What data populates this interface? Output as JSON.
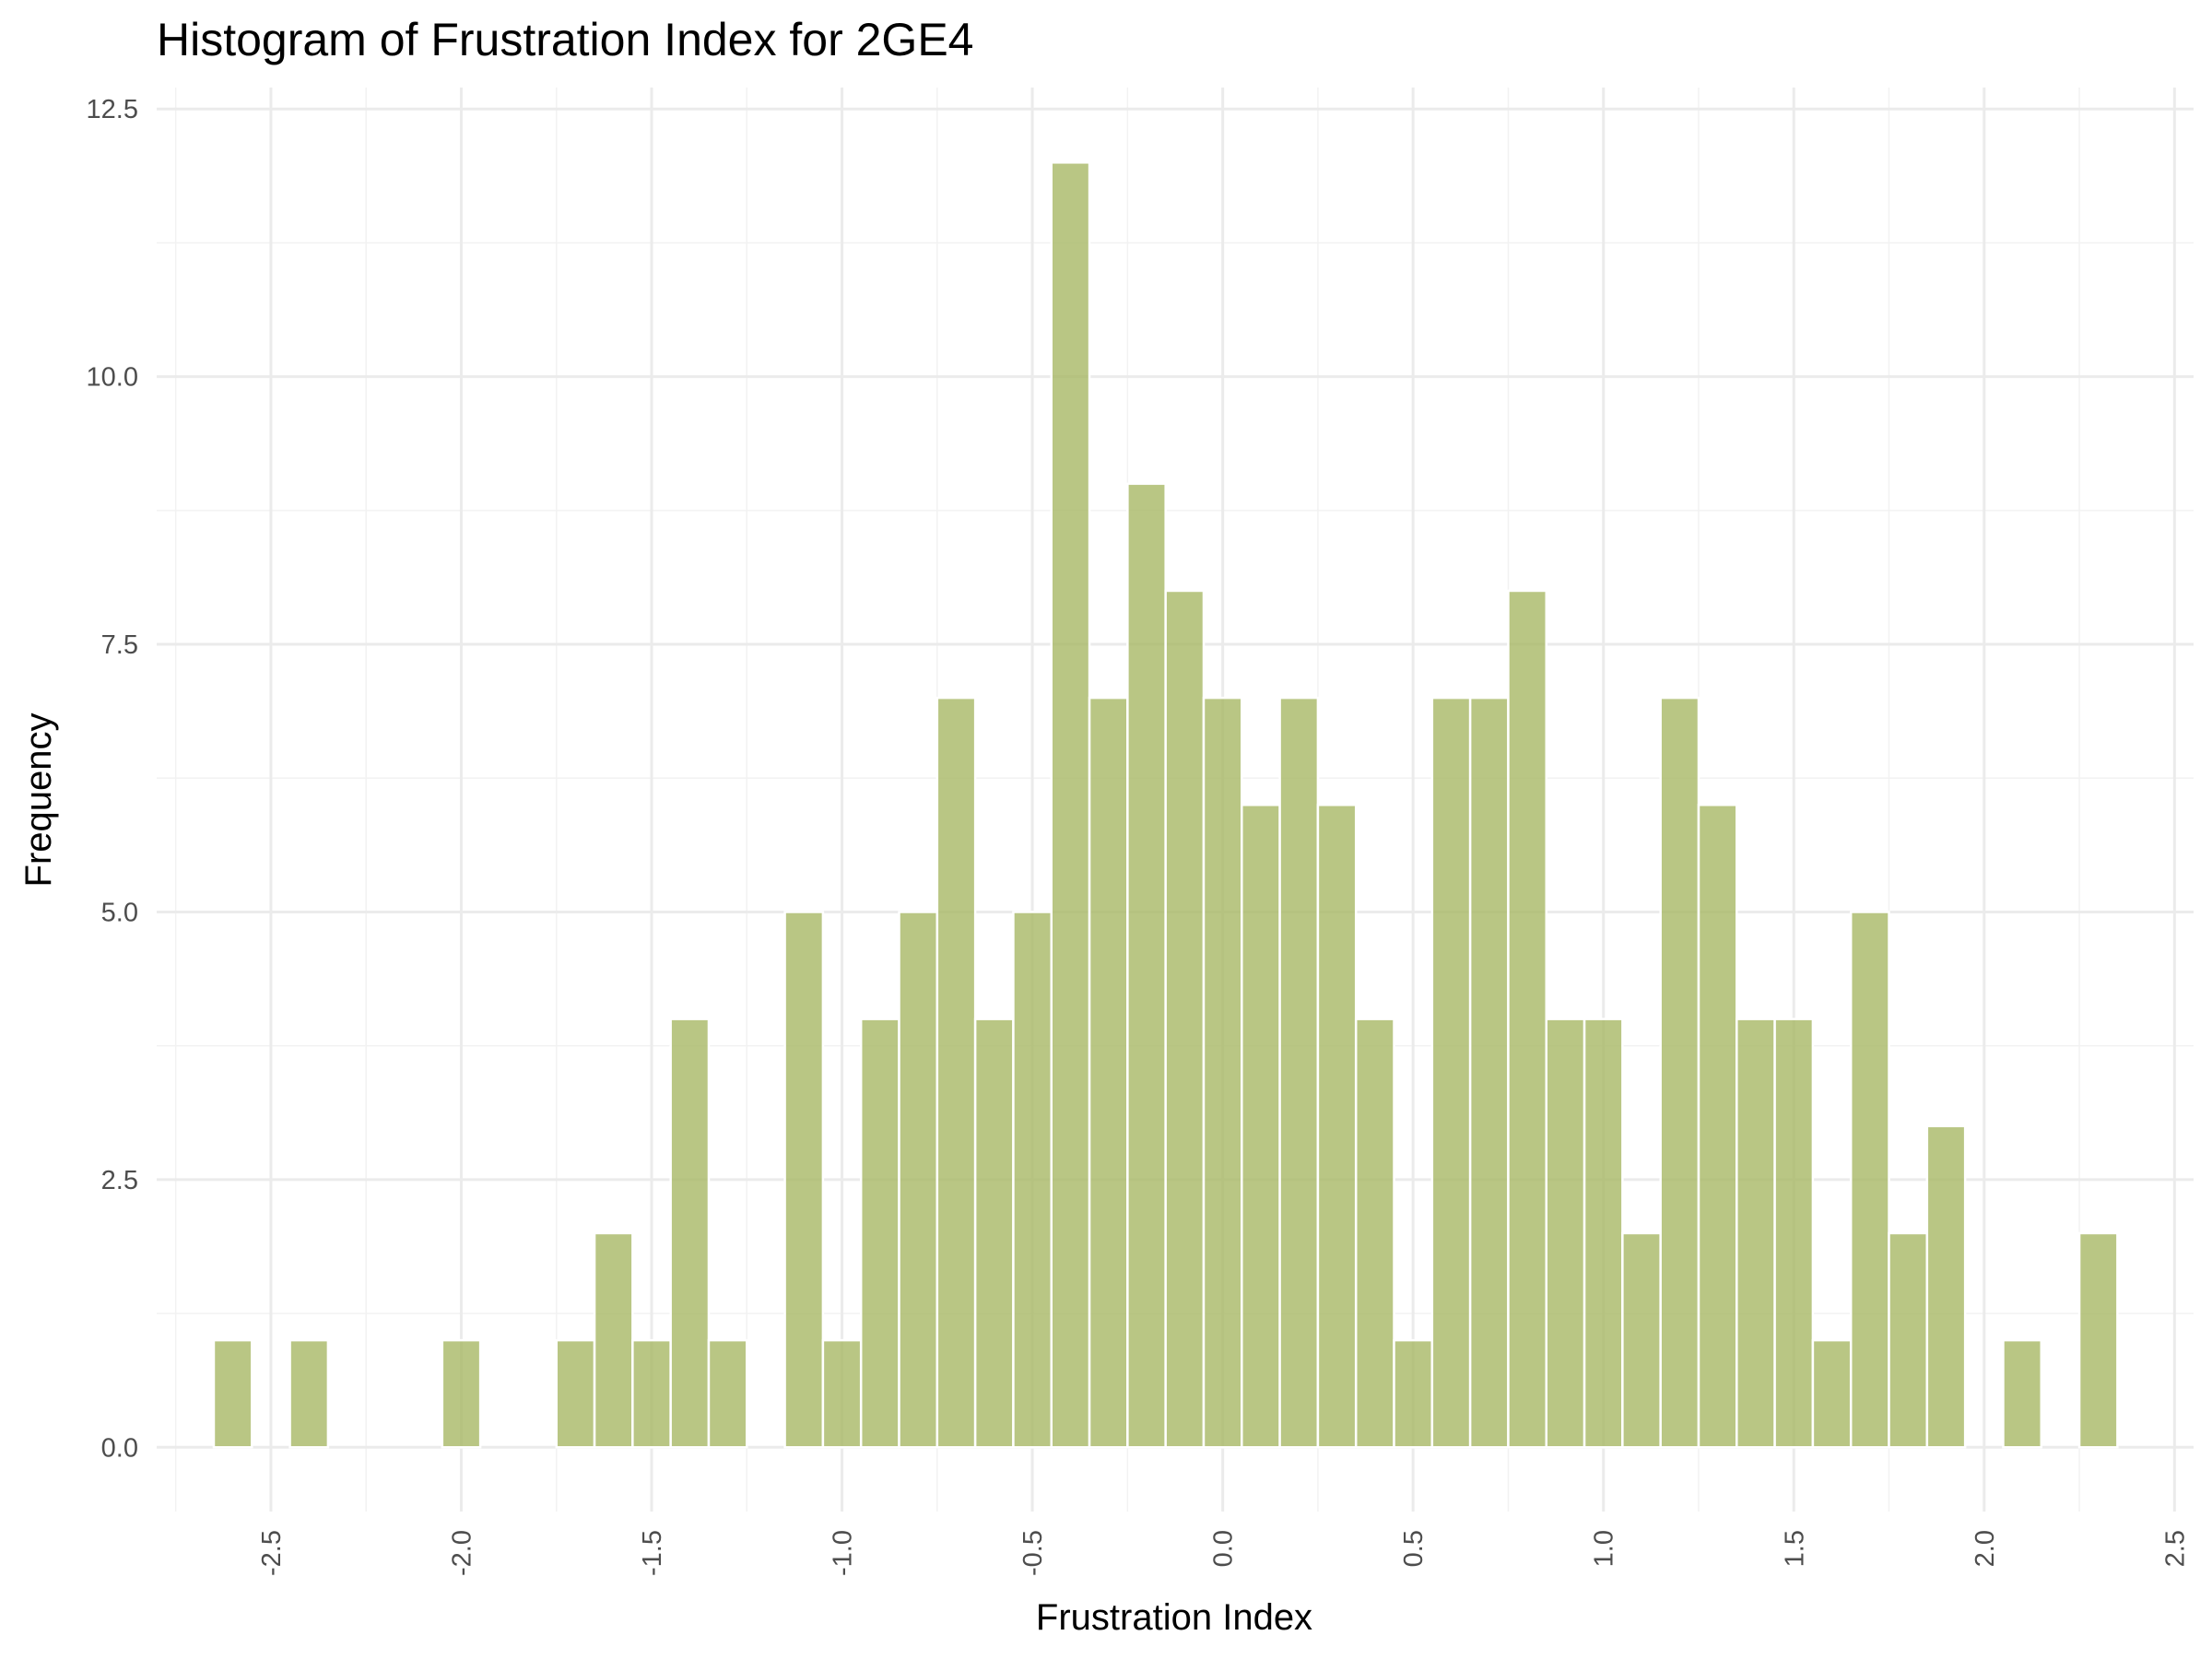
{
  "chart_data": {
    "type": "bar",
    "title": "Histogram of Frustration Index for 2GE4",
    "xlabel": "Frustration Index",
    "ylabel": "Frequency",
    "xlim": [
      -2.8,
      2.55
    ],
    "ylim": [
      -0.6,
      12.7
    ],
    "x_ticks": [
      -2.5,
      -2.0,
      -1.5,
      -1.0,
      -0.5,
      0.0,
      0.5,
      1.0,
      1.5,
      2.0,
      2.5
    ],
    "x_tick_labels": [
      "-2.5",
      "-2.0",
      "-1.5",
      "-1.0",
      "-0.5",
      "0.0",
      "0.5",
      "1.0",
      "1.5",
      "2.0",
      "2.5"
    ],
    "y_ticks": [
      0.0,
      2.5,
      5.0,
      7.5,
      10.0,
      12.5
    ],
    "y_tick_labels": [
      "0.0",
      "2.5",
      "5.0",
      "7.5",
      "10.0",
      "12.5"
    ],
    "bin_width": 0.1,
    "bin_centers": [
      -2.6,
      -2.5,
      -2.4,
      -2.3,
      -2.2,
      -2.1,
      -2.0,
      -1.9,
      -1.8,
      -1.7,
      -1.6,
      -1.5,
      -1.4,
      -1.3,
      -1.2,
      -1.1,
      -1.0,
      -0.9,
      -0.8,
      -0.7,
      -0.6,
      -0.5,
      -0.4,
      -0.3,
      -0.2,
      -0.1,
      0.0,
      0.1,
      0.2,
      0.3,
      0.4,
      0.5,
      0.6,
      0.7,
      0.8,
      0.9,
      1.0,
      1.1,
      1.2,
      1.3,
      1.4,
      1.5,
      1.6,
      1.7,
      1.8,
      1.9,
      2.0,
      2.1,
      2.2,
      2.3
    ],
    "values": [
      1,
      0,
      1,
      0,
      0,
      0,
      1,
      0,
      0,
      1,
      2,
      1,
      4,
      1,
      0,
      5,
      1,
      4,
      5,
      7,
      4,
      5,
      12,
      7,
      9,
      8,
      7,
      6,
      7,
      6,
      4,
      1,
      7,
      7,
      8,
      4,
      4,
      2,
      7,
      6,
      4,
      4,
      1,
      5,
      2,
      3,
      0,
      1,
      0,
      2
    ],
    "bar_color": "#a8b865",
    "grid": true,
    "legend": "none"
  }
}
